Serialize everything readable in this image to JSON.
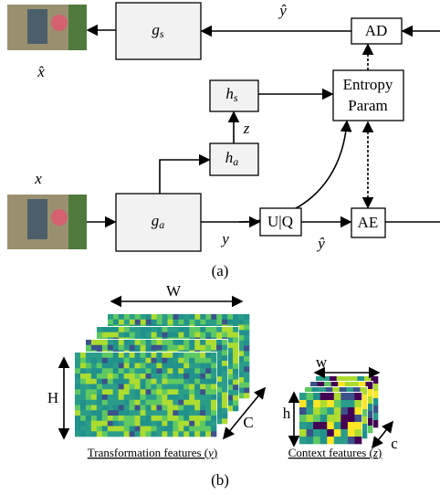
{
  "top": {
    "decoder": {
      "main": "g",
      "sub": "s"
    },
    "x_hat": "x̂",
    "y_hat": "ŷ",
    "ad": "AD"
  },
  "hyper": {
    "synthesis": {
      "main": "h",
      "sub": "s"
    },
    "z": "z",
    "entropy": [
      "Entropy",
      "Param"
    ],
    "analysis": {
      "main": "h",
      "sub": "a"
    }
  },
  "bottom": {
    "x": "x",
    "encoder": {
      "main": "g",
      "sub": "a"
    },
    "y": "y",
    "quant": "U|Q",
    "y_hat": "ŷ",
    "ae": "AE"
  },
  "caption_a": "(a)",
  "features": {
    "W": "W",
    "H": "H",
    "C": "C",
    "caption": {
      "text": "Transformation features (",
      "var": "y",
      "close": ")"
    }
  },
  "context": {
    "w": "w",
    "h": "h",
    "c": "c",
    "caption": {
      "text": "Context features (",
      "var": "z",
      "close": ")"
    }
  },
  "caption_b": "(b)"
}
